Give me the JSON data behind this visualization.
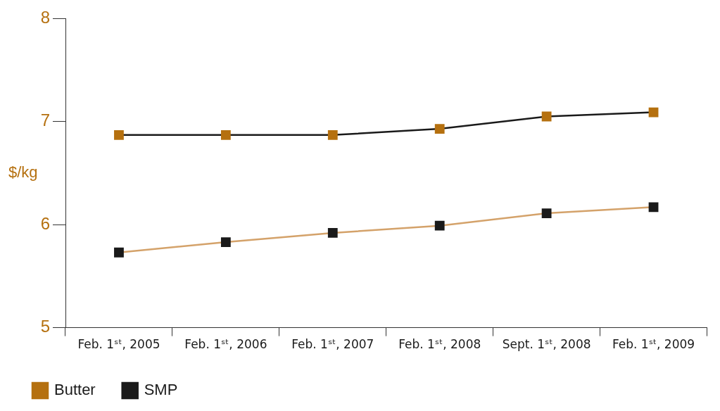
{
  "chart_data": {
    "type": "line",
    "ylabel": "$/kg",
    "categories": [
      "Feb. 1ˢᵗ, 2005",
      "Feb. 1ˢᵗ, 2006",
      "Feb. 1ˢᵗ, 2007",
      "Feb. 1ˢᵗ, 2008",
      "Sept. 1ˢᵗ, 2008",
      "Feb. 1ˢᵗ, 2009"
    ],
    "series": [
      {
        "name": "Butter",
        "color": "#1a1a1a",
        "colors": [
          "#b5700f",
          "#b5700f",
          "#b5700f",
          "#b5700f",
          "#b5700f",
          "#b5700f"
        ],
        "values": [
          6.87,
          6.87,
          6.87,
          6.93,
          7.05,
          7.09
        ]
      },
      {
        "name": "SMP",
        "color": "#d4a26a",
        "colors": [
          "#1a1a1a",
          "#1a1a1a",
          "#1a1a1a",
          "#1a1a1a",
          "#1a1a1a",
          "#1a1a1a"
        ],
        "values": [
          5.73,
          5.83,
          5.92,
          5.99,
          6.11,
          6.17
        ]
      }
    ],
    "ylim": [
      5,
      8
    ],
    "yticks": [
      5,
      6,
      7,
      8
    ],
    "grid": false,
    "legend": "bottom left",
    "marker": "square",
    "line_style": "solid"
  }
}
